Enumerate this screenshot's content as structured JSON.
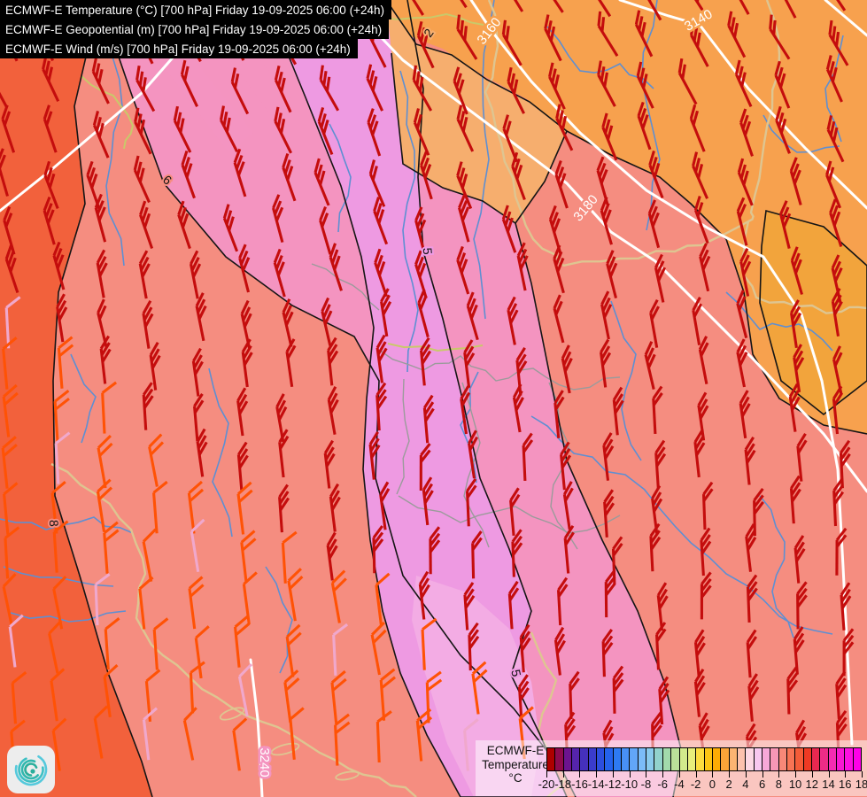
{
  "header": {
    "lines": [
      "ECMWF-E Temperature (°C) [700 hPa] Friday 19-09-2025 06:00 (+24h)",
      "ECMWF-E Geopotential (m) [700 hPa] Friday 19-09-2025 06:00 (+24h)",
      "ECMWF-E Wind (m/s) [700 hPa] Friday 19-09-2025 06:00 (+24h)"
    ]
  },
  "map": {
    "geopotential_labels": [
      "3140",
      "3160",
      "3180",
      "3240"
    ],
    "temperature_labels": [
      "2",
      "5",
      "6",
      "8",
      "5"
    ],
    "parameter_units": {
      "temperature": "°C",
      "geopotential": "m",
      "wind": "m/s"
    },
    "level": "700 hPa",
    "valid_time": "Friday 19-09-2025 06:00 (+24h)"
  },
  "legend": {
    "title_lines": [
      "ECMWF-E",
      "Temperature",
      "°C"
    ],
    "ticks": [
      "-20",
      "-18",
      "-16",
      "-14",
      "-12",
      "-10",
      "-8",
      "-6",
      "-4",
      "-2",
      "0",
      "2",
      "4",
      "6",
      "8",
      "10",
      "12",
      "14",
      "16",
      "18"
    ],
    "scale_min": -20,
    "scale_max": 18,
    "scale_colors": [
      "#AE0000",
      "#8E0A4E",
      "#6C1390",
      "#5524AC",
      "#4530BC",
      "#3A3CCC",
      "#2C4EDE",
      "#2462EC",
      "#2E7AF2",
      "#4890F6",
      "#62A6F8",
      "#7CBCF8",
      "#8ACAEC",
      "#92D2CC",
      "#A2DAAC",
      "#BAE29A",
      "#D2EA8C",
      "#E8EE7C",
      "#FCDC40",
      "#FCC414",
      "#FCAC04",
      "#FCA438",
      "#FCB472",
      "#FCC2AE",
      "#FCD8E4",
      "#F8C8F0",
      "#F8A8D8",
      "#F896B6",
      "#F88878",
      "#F87454",
      "#F45C38",
      "#EE3A24",
      "#E82850",
      "#EE2C86",
      "#F42CB2",
      "#F818D2",
      "#FC10E0",
      "#FF00E8"
    ]
  },
  "colors": {
    "region_west": "#F2613C",
    "region_salmon": "#F58D80",
    "region_pink": "#F494C0",
    "region_violet": "#EE9AE2",
    "region_violet_light": "#F3ACE4",
    "region_wedge": "#F6AE6E",
    "region_orange": "#F7A14E",
    "region_amber": "#F2A43C",
    "isotherm": "#151515",
    "geopotential_line": "#FFFFFF",
    "river": "#5E8FD2",
    "border_country": "#DEC591",
    "border_internal": "#9B9B9B",
    "border_special": "#C9C96A",
    "barb_strong": "#C40D0D",
    "barb_medium": "#FF5205",
    "barb_light": "#F0A8CC",
    "header_bg": "#000000",
    "header_fg": "#FFFFFF",
    "logo_teal": "#2FB3A8"
  }
}
